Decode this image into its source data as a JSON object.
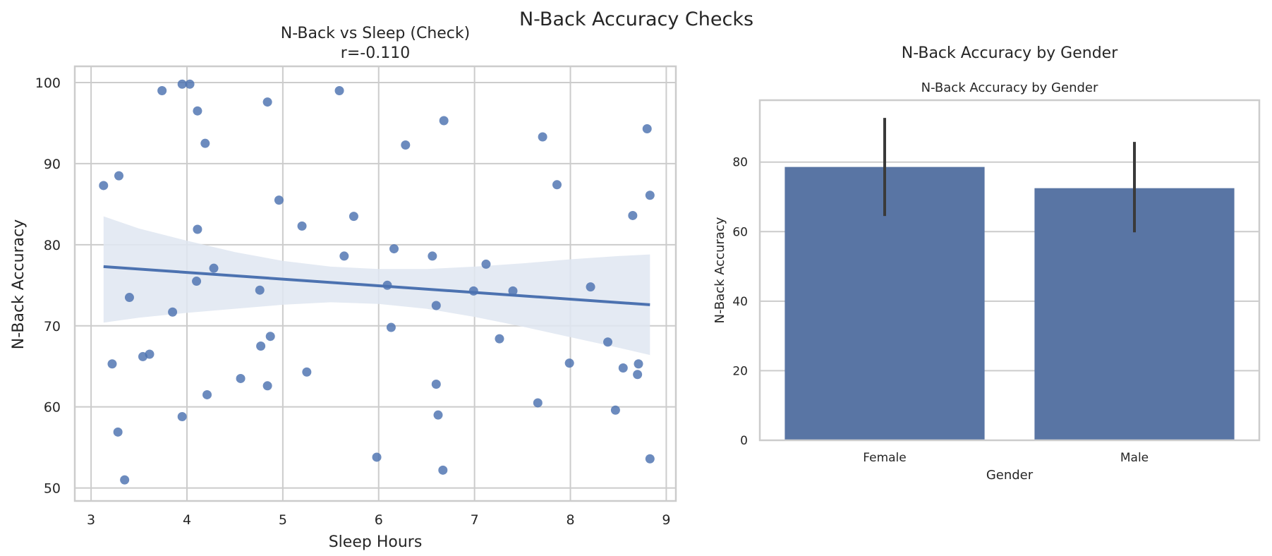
{
  "figure": {
    "suptitle": "N-Back Accuracy Checks"
  },
  "colors": {
    "point": "#4c72b0",
    "line": "#4c72b0",
    "band": "#dfe6f1",
    "bar": "#5975a4",
    "errorbar": "#3a3a3a",
    "grid": "#cccccc",
    "spine": "#cccccc",
    "text": "#262626"
  },
  "chart_data": [
    {
      "type": "scatter",
      "title": "N-Back vs Sleep (Check)",
      "subtitle": "r=-0.110",
      "xlabel": "Sleep Hours",
      "ylabel": "N-Back Accuracy",
      "xlim": [
        2.83,
        9.1
      ],
      "ylim": [
        48.4,
        102
      ],
      "xticks": [
        3,
        4,
        5,
        6,
        7,
        8,
        9
      ],
      "yticks": [
        50,
        60,
        70,
        80,
        90,
        100
      ],
      "grid": true,
      "points": [
        [
          3.13,
          87.3
        ],
        [
          3.22,
          65.3
        ],
        [
          3.28,
          56.9
        ],
        [
          3.29,
          88.5
        ],
        [
          3.35,
          51.0
        ],
        [
          3.4,
          73.5
        ],
        [
          3.54,
          66.2
        ],
        [
          3.61,
          66.5
        ],
        [
          3.74,
          99.0
        ],
        [
          3.85,
          71.7
        ],
        [
          3.95,
          99.8
        ],
        [
          3.95,
          58.8
        ],
        [
          4.03,
          99.8
        ],
        [
          4.1,
          75.5
        ],
        [
          4.11,
          81.9
        ],
        [
          4.11,
          96.5
        ],
        [
          4.19,
          92.5
        ],
        [
          4.21,
          61.5
        ],
        [
          4.28,
          77.1
        ],
        [
          4.56,
          63.5
        ],
        [
          4.76,
          74.4
        ],
        [
          4.77,
          67.5
        ],
        [
          4.84,
          97.6
        ],
        [
          4.84,
          62.6
        ],
        [
          4.87,
          68.7
        ],
        [
          4.96,
          85.5
        ],
        [
          5.2,
          82.3
        ],
        [
          5.25,
          64.3
        ],
        [
          5.59,
          99.0
        ],
        [
          5.64,
          78.6
        ],
        [
          5.74,
          83.5
        ],
        [
          5.98,
          53.8
        ],
        [
          6.09,
          75.0
        ],
        [
          6.13,
          69.8
        ],
        [
          6.16,
          79.5
        ],
        [
          6.28,
          92.3
        ],
        [
          6.56,
          78.6
        ],
        [
          6.6,
          72.5
        ],
        [
          6.6,
          62.8
        ],
        [
          6.62,
          59.0
        ],
        [
          6.67,
          52.2
        ],
        [
          6.68,
          95.3
        ],
        [
          6.99,
          74.3
        ],
        [
          7.12,
          77.6
        ],
        [
          7.26,
          68.4
        ],
        [
          7.4,
          74.3
        ],
        [
          7.66,
          60.5
        ],
        [
          7.71,
          93.3
        ],
        [
          7.86,
          87.4
        ],
        [
          7.99,
          65.4
        ],
        [
          8.21,
          74.8
        ],
        [
          8.39,
          68.0
        ],
        [
          8.47,
          59.6
        ],
        [
          8.55,
          64.8
        ],
        [
          8.65,
          83.6
        ],
        [
          8.7,
          64.0
        ],
        [
          8.71,
          65.3
        ],
        [
          8.8,
          94.3
        ],
        [
          8.83,
          86.1
        ],
        [
          8.83,
          53.6
        ]
      ],
      "regression": {
        "x": [
          3.13,
          8.83
        ],
        "y": [
          77.3,
          72.6
        ]
      },
      "confidence_band": {
        "x": [
          3.13,
          3.5,
          4.0,
          4.5,
          5.0,
          5.5,
          6.0,
          6.5,
          7.0,
          7.5,
          8.0,
          8.5,
          8.83
        ],
        "upper": [
          83.5,
          82.0,
          80.5,
          79.1,
          78.0,
          77.3,
          77.0,
          77.0,
          77.3,
          77.7,
          78.2,
          78.6,
          78.8
        ],
        "lower": [
          70.4,
          71.0,
          71.6,
          72.1,
          72.6,
          72.9,
          72.7,
          72.1,
          71.1,
          69.9,
          68.6,
          67.3,
          66.4
        ]
      }
    },
    {
      "type": "bar",
      "header": "N-Back Accuracy by Gender",
      "title": "N-Back Accuracy by Gender",
      "xlabel": "Gender",
      "ylabel": "N-Back Accuracy",
      "categories": [
        "Female",
        "Male"
      ],
      "values": [
        78.6,
        72.5
      ],
      "error_low": [
        64.5,
        59.8
      ],
      "error_high": [
        92.7,
        85.8
      ],
      "ylim": [
        0,
        97.8
      ],
      "yticks": [
        0,
        20,
        40,
        60,
        80
      ],
      "grid": true
    }
  ]
}
